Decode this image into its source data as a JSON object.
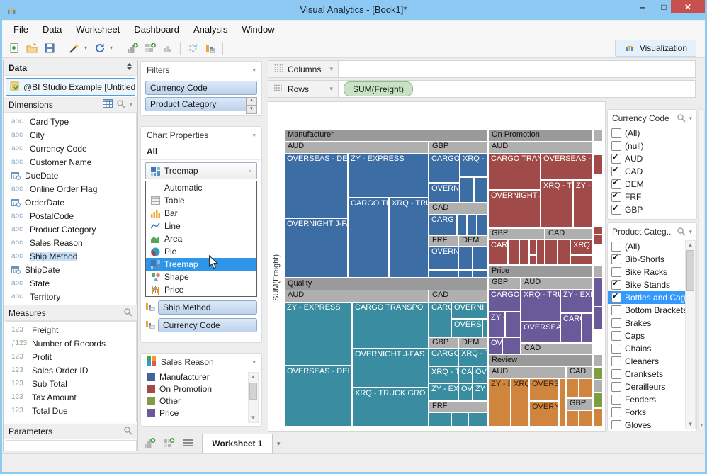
{
  "window": {
    "title": "Visual Analytics - [Book1]*"
  },
  "menu": [
    "File",
    "Data",
    "Worksheet",
    "Dashboard",
    "Analysis",
    "Window"
  ],
  "toolbar": {
    "visualization_label": "Visualization"
  },
  "data_panel": {
    "title": "Data",
    "connection": "@BI Studio Example [Untitled]",
    "dimensions": {
      "title": "Dimensions",
      "items": [
        {
          "icon": "abc",
          "label": "Card Type"
        },
        {
          "icon": "abc",
          "label": "City"
        },
        {
          "icon": "abc",
          "label": "Currency Code"
        },
        {
          "icon": "abc",
          "label": "Customer Name"
        },
        {
          "icon": "date",
          "label": "DueDate"
        },
        {
          "icon": "abc",
          "label": "Online Order Flag"
        },
        {
          "icon": "date",
          "label": "OrderDate"
        },
        {
          "icon": "abc",
          "label": "PostalCode"
        },
        {
          "icon": "abc",
          "label": "Product Category"
        },
        {
          "icon": "abc",
          "label": "Sales Reason"
        },
        {
          "icon": "abc",
          "label": "Ship Method",
          "highlighted": true
        },
        {
          "icon": "date",
          "label": "ShipDate"
        },
        {
          "icon": "abc",
          "label": "State"
        },
        {
          "icon": "abc",
          "label": "Territory"
        }
      ]
    },
    "measures": {
      "title": "Measures",
      "items": [
        {
          "icon": "123",
          "label": "Freight"
        },
        {
          "icon": "f123",
          "label": "Number of Records"
        },
        {
          "icon": "123",
          "label": "Profit"
        },
        {
          "icon": "123",
          "label": "Sales Order ID"
        },
        {
          "icon": "123",
          "label": "Sub Total"
        },
        {
          "icon": "123",
          "label": "Tax Amount"
        },
        {
          "icon": "123",
          "label": "Total Due"
        }
      ]
    },
    "parameters": {
      "title": "Parameters"
    }
  },
  "filters_panel": {
    "title": "Filters",
    "pills": [
      "Currency Code",
      "Product Category"
    ]
  },
  "chart_properties": {
    "title": "Chart Properties",
    "scope": "All",
    "selected_type": "Treemap",
    "type_options": [
      {
        "icon": "none",
        "label": "Automatic"
      },
      {
        "icon": "table",
        "label": "Table"
      },
      {
        "icon": "bar",
        "label": "Bar"
      },
      {
        "icon": "line",
        "label": "Line"
      },
      {
        "icon": "area",
        "label": "Area"
      },
      {
        "icon": "pie",
        "label": "Pie"
      },
      {
        "icon": "treemap",
        "label": "Treemap",
        "selected": true
      },
      {
        "icon": "shape",
        "label": "Shape"
      },
      {
        "icon": "price",
        "label": "Price"
      }
    ],
    "shelf_pills": [
      "Ship Method",
      "Currency Code"
    ]
  },
  "sales_reason_legend": {
    "title": "Sales Reason",
    "items": [
      {
        "label": "Manufacturer",
        "color": "#44639C"
      },
      {
        "label": "On Promotion",
        "color": "#A04A4A"
      },
      {
        "label": "Other",
        "color": "#7E9E43"
      },
      {
        "label": "Price",
        "color": "#6A5A99"
      }
    ]
  },
  "shelves": {
    "columns_label": "Columns",
    "rows_label": "Rows",
    "rows_pills": [
      "SUM(Freight)"
    ]
  },
  "axis": {
    "y_label": "SUM(Freight)"
  },
  "currency_filter": {
    "title": "Currency Code",
    "items": [
      {
        "label": "(All)",
        "checked": false
      },
      {
        "label": "(null)",
        "checked": false
      },
      {
        "label": "AUD",
        "checked": true
      },
      {
        "label": "CAD",
        "checked": true
      },
      {
        "label": "DEM",
        "checked": true
      },
      {
        "label": "FRF",
        "checked": true
      },
      {
        "label": "GBP",
        "checked": true
      }
    ]
  },
  "category_filter": {
    "title": "Product Categ...",
    "items": [
      {
        "label": "(All)",
        "checked": false
      },
      {
        "label": "Bib-Shorts",
        "checked": true
      },
      {
        "label": "Bike Racks",
        "checked": false
      },
      {
        "label": "Bike Stands",
        "checked": true
      },
      {
        "label": "Bottles and Cages",
        "checked": true,
        "selected": true
      },
      {
        "label": "Bottom Brackets",
        "checked": false
      },
      {
        "label": "Brakes",
        "checked": false
      },
      {
        "label": "Caps",
        "checked": false
      },
      {
        "label": "Chains",
        "checked": false
      },
      {
        "label": "Cleaners",
        "checked": false
      },
      {
        "label": "Cranksets",
        "checked": false
      },
      {
        "label": "Derailleurs",
        "checked": false
      },
      {
        "label": "Fenders",
        "checked": false
      },
      {
        "label": "Forks",
        "checked": false
      },
      {
        "label": "Gloves",
        "checked": false
      }
    ]
  },
  "tabs": {
    "worksheet": "Worksheet 1"
  },
  "chart_data": {
    "type": "treemap",
    "measure": "SUM(Freight)",
    "hierarchy": [
      "Sales Reason",
      "Currency Code",
      "Ship Method"
    ],
    "panels": [
      "Manufacturer",
      "Quality",
      "On Promotion",
      "Price",
      "Review",
      "Other"
    ],
    "currencies": [
      "AUD",
      "GBP",
      "CAD",
      "FRF",
      "DEM"
    ],
    "colors": {
      "m": "#3C6EA5",
      "q": "#3A8CA0",
      "o": "#A04A4A",
      "p": "#6A5A99",
      "r": "#D0853E",
      "g": "#7E9E43",
      "panel_header": "#9A9A9A",
      "currency_header": "#AFAFAF"
    },
    "cells": [
      [
        "ph",
        0,
        0,
        286,
        16,
        "Manufacturer",
        ""
      ],
      [
        "ch",
        0,
        17,
        202,
        16,
        "AUD",
        ""
      ],
      [
        "c",
        0,
        34,
        88,
        90,
        "OVERSEAS - DEL",
        "m"
      ],
      [
        "c",
        0,
        126,
        88,
        82,
        "OVERNIGHT J-FA",
        "m"
      ],
      [
        "c",
        90,
        34,
        112,
        61,
        "ZY - EXPRESS",
        "m"
      ],
      [
        "c",
        90,
        97,
        56,
        111,
        "CARGO TR",
        "m"
      ],
      [
        "c",
        148,
        97,
        54,
        111,
        "XRQ - TRU",
        "m"
      ],
      [
        "ch",
        204,
        17,
        82,
        16,
        "GBP",
        ""
      ],
      [
        "c",
        204,
        34,
        42,
        40,
        "CARGO",
        "m"
      ],
      [
        "c",
        248,
        34,
        38,
        32,
        "XRQ -",
        "m"
      ],
      [
        "c",
        204,
        76,
        42,
        26,
        "OVERNI",
        "m"
      ],
      [
        "c",
        248,
        68,
        18,
        34,
        "",
        "m"
      ],
      [
        "c",
        268,
        68,
        18,
        34,
        "",
        "m"
      ],
      [
        "ch",
        204,
        104,
        82,
        15,
        "CAD",
        ""
      ],
      [
        "c",
        204,
        120,
        38,
        28,
        "CARG",
        "m"
      ],
      [
        "c",
        244,
        120,
        12,
        28,
        "",
        "m"
      ],
      [
        "c",
        258,
        120,
        12,
        28,
        "",
        "m"
      ],
      [
        "c",
        272,
        120,
        14,
        28,
        "",
        "m"
      ],
      [
        "ch",
        204,
        150,
        40,
        14,
        "FRF",
        ""
      ],
      [
        "ch",
        246,
        150,
        40,
        14,
        "DEM",
        ""
      ],
      [
        "c",
        204,
        165,
        40,
        32,
        "OVERN",
        "m"
      ],
      [
        "c",
        246,
        165,
        18,
        32,
        "",
        "m"
      ],
      [
        "c",
        266,
        165,
        20,
        32,
        "",
        "m"
      ],
      [
        "c",
        204,
        199,
        40,
        9,
        "",
        "m"
      ],
      [
        "c",
        246,
        199,
        18,
        9,
        "",
        "m"
      ],
      [
        "c",
        266,
        199,
        20,
        9,
        "",
        "m"
      ],
      [
        "ph",
        0,
        210,
        286,
        16,
        "Quality",
        ""
      ],
      [
        "ch",
        0,
        227,
        202,
        16,
        "AUD",
        ""
      ],
      [
        "c",
        0,
        244,
        94,
        88,
        "ZY - EXPRESS",
        "q"
      ],
      [
        "c",
        0,
        334,
        94,
        84,
        "OVERSEAS - DELU",
        "q"
      ],
      [
        "c",
        96,
        244,
        106,
        64,
        "CARGO TRANSPO",
        "q"
      ],
      [
        "c",
        96,
        310,
        106,
        53,
        "OVERNIGHT J-FAS",
        "q"
      ],
      [
        "c",
        96,
        365,
        106,
        53,
        "XRQ - TRUCK GRO",
        "q"
      ],
      [
        "ch",
        204,
        227,
        82,
        16,
        "CAD",
        ""
      ],
      [
        "c",
        204,
        244,
        30,
        48,
        "CARG",
        "q"
      ],
      [
        "c",
        236,
        244,
        50,
        22,
        "OVERNI",
        "q"
      ],
      [
        "c",
        236,
        268,
        42,
        24,
        "OVERSE",
        "q"
      ],
      [
        "c",
        280,
        268,
        6,
        24,
        "",
        "q"
      ],
      [
        "ch",
        204,
        294,
        40,
        14,
        "GBP",
        ""
      ],
      [
        "ch",
        246,
        294,
        40,
        14,
        "DEM",
        ""
      ],
      [
        "c",
        204,
        309,
        40,
        24,
        "CARGO T",
        "q"
      ],
      [
        "c",
        204,
        335,
        40,
        22,
        "XRQ - TR",
        "q"
      ],
      [
        "c",
        204,
        359,
        40,
        23,
        "ZY - EXP",
        "q"
      ],
      [
        "c",
        246,
        309,
        40,
        24,
        "XRQ - TR",
        "q"
      ],
      [
        "c",
        246,
        335,
        18,
        22,
        "CAR",
        "q"
      ],
      [
        "c",
        266,
        335,
        20,
        22,
        "OVE",
        "q"
      ],
      [
        "c",
        246,
        359,
        18,
        23,
        "OVE",
        "q"
      ],
      [
        "c",
        266,
        359,
        20,
        23,
        "ZY -",
        "q"
      ],
      [
        "ch",
        204,
        384,
        82,
        15,
        "FRF",
        ""
      ],
      [
        "c",
        204,
        400,
        30,
        18,
        "",
        "q"
      ],
      [
        "c",
        236,
        400,
        22,
        18,
        "",
        "q"
      ],
      [
        "c",
        260,
        400,
        26,
        18,
        "",
        "q"
      ],
      [
        "ph",
        288,
        0,
        146,
        16,
        "On Promotion",
        ""
      ],
      [
        "ch",
        288,
        17,
        146,
        16,
        "AUD",
        ""
      ],
      [
        "c",
        288,
        34,
        72,
        50,
        "CARGO TRANS",
        "o"
      ],
      [
        "c",
        288,
        86,
        72,
        52,
        "OVERNIGHT J-",
        "o"
      ],
      [
        "c",
        362,
        34,
        72,
        36,
        "OVERSEAS - D",
        "o"
      ],
      [
        "c",
        362,
        72,
        44,
        66,
        "XRQ - TR",
        "o"
      ],
      [
        "c",
        408,
        72,
        26,
        66,
        "ZY -",
        "o"
      ],
      [
        "ch",
        288,
        140,
        78,
        15,
        "GBP",
        ""
      ],
      [
        "c",
        288,
        156,
        26,
        34,
        "CARG",
        "o"
      ],
      [
        "c",
        316,
        156,
        14,
        34,
        "",
        "o"
      ],
      [
        "c",
        332,
        156,
        12,
        34,
        "",
        "o"
      ],
      [
        "c",
        346,
        156,
        8,
        20,
        "",
        "o"
      ],
      [
        "c",
        346,
        178,
        8,
        12,
        "",
        "o"
      ],
      [
        "c",
        356,
        156,
        10,
        34,
        "",
        "o"
      ],
      [
        "ch",
        368,
        140,
        66,
        15,
        "CAD",
        ""
      ],
      [
        "c",
        368,
        156,
        16,
        34,
        "",
        "o"
      ],
      [
        "c",
        386,
        156,
        16,
        34,
        "",
        "o"
      ],
      [
        "c",
        404,
        156,
        30,
        20,
        "XRQ",
        "o"
      ],
      [
        "c",
        404,
        178,
        30,
        12,
        "",
        "o"
      ],
      [
        "ph",
        288,
        192,
        146,
        16,
        "Price",
        ""
      ],
      [
        "ch",
        288,
        209,
        44,
        16,
        "GBP",
        ""
      ],
      [
        "ch",
        334,
        209,
        100,
        16,
        "AUD",
        ""
      ],
      [
        "c",
        288,
        226,
        44,
        30,
        "CARGO T",
        "p"
      ],
      [
        "c",
        288,
        258,
        22,
        34,
        "ZY -",
        "p"
      ],
      [
        "c",
        312,
        258,
        20,
        34,
        "",
        "p"
      ],
      [
        "c",
        288,
        294,
        18,
        22,
        "OVE",
        "p"
      ],
      [
        "c",
        308,
        294,
        24,
        22,
        "",
        "p"
      ],
      [
        "c",
        334,
        226,
        54,
        44,
        "XRQ - TRU",
        "p"
      ],
      [
        "c",
        390,
        226,
        44,
        32,
        "ZY - EXP",
        "p"
      ],
      [
        "c",
        334,
        272,
        54,
        28,
        "OVERSEAS",
        "p"
      ],
      [
        "c",
        390,
        260,
        28,
        40,
        "CARG",
        "p"
      ],
      [
        "c",
        420,
        260,
        14,
        40,
        "",
        "p"
      ],
      [
        "ch",
        334,
        302,
        100,
        14,
        "CAD",
        ""
      ],
      [
        "ph",
        288,
        318,
        146,
        16,
        "Review",
        ""
      ],
      [
        "ch",
        288,
        335,
        108,
        16,
        "AUD",
        ""
      ],
      [
        "ch",
        398,
        335,
        36,
        16,
        "CAD",
        ""
      ],
      [
        "c",
        288,
        352,
        30,
        66,
        "ZY - E",
        "r"
      ],
      [
        "c",
        320,
        352,
        24,
        66,
        "XRQ",
        "r"
      ],
      [
        "c",
        346,
        352,
        40,
        30,
        "OVERSI",
        "r"
      ],
      [
        "c",
        346,
        384,
        40,
        34,
        "OVERN",
        "r"
      ],
      [
        "c",
        388,
        352,
        8,
        66,
        "",
        "r"
      ],
      [
        "c",
        398,
        352,
        16,
        26,
        "",
        "r"
      ],
      [
        "c",
        416,
        352,
        18,
        26,
        "",
        "r"
      ],
      [
        "ch",
        398,
        380,
        36,
        15,
        "GBP",
        ""
      ],
      [
        "c",
        398,
        397,
        16,
        21,
        "",
        "r"
      ],
      [
        "c",
        416,
        397,
        18,
        21,
        "",
        "r"
      ],
      [
        "ch",
        437,
        0,
        11,
        16,
        "",
        ""
      ],
      [
        "c",
        437,
        36,
        11,
        26,
        "",
        "o"
      ],
      [
        "c",
        437,
        137,
        11,
        10,
        "",
        "o"
      ],
      [
        "c",
        437,
        149,
        11,
        13,
        "",
        "o"
      ],
      [
        "ch",
        437,
        192,
        11,
        16,
        "",
        ""
      ],
      [
        "c",
        437,
        210,
        11,
        39,
        "",
        "p"
      ],
      [
        "c",
        437,
        251,
        11,
        31,
        "",
        "p"
      ],
      [
        "ch",
        437,
        318,
        11,
        16,
        "",
        ""
      ],
      [
        "c",
        437,
        336,
        11,
        16,
        "",
        "g"
      ],
      [
        "ch",
        437,
        354,
        11,
        16,
        "",
        ""
      ],
      [
        "c",
        437,
        372,
        11,
        20,
        "",
        "g"
      ],
      [
        "c",
        437,
        394,
        11,
        24,
        "",
        "r"
      ]
    ]
  }
}
